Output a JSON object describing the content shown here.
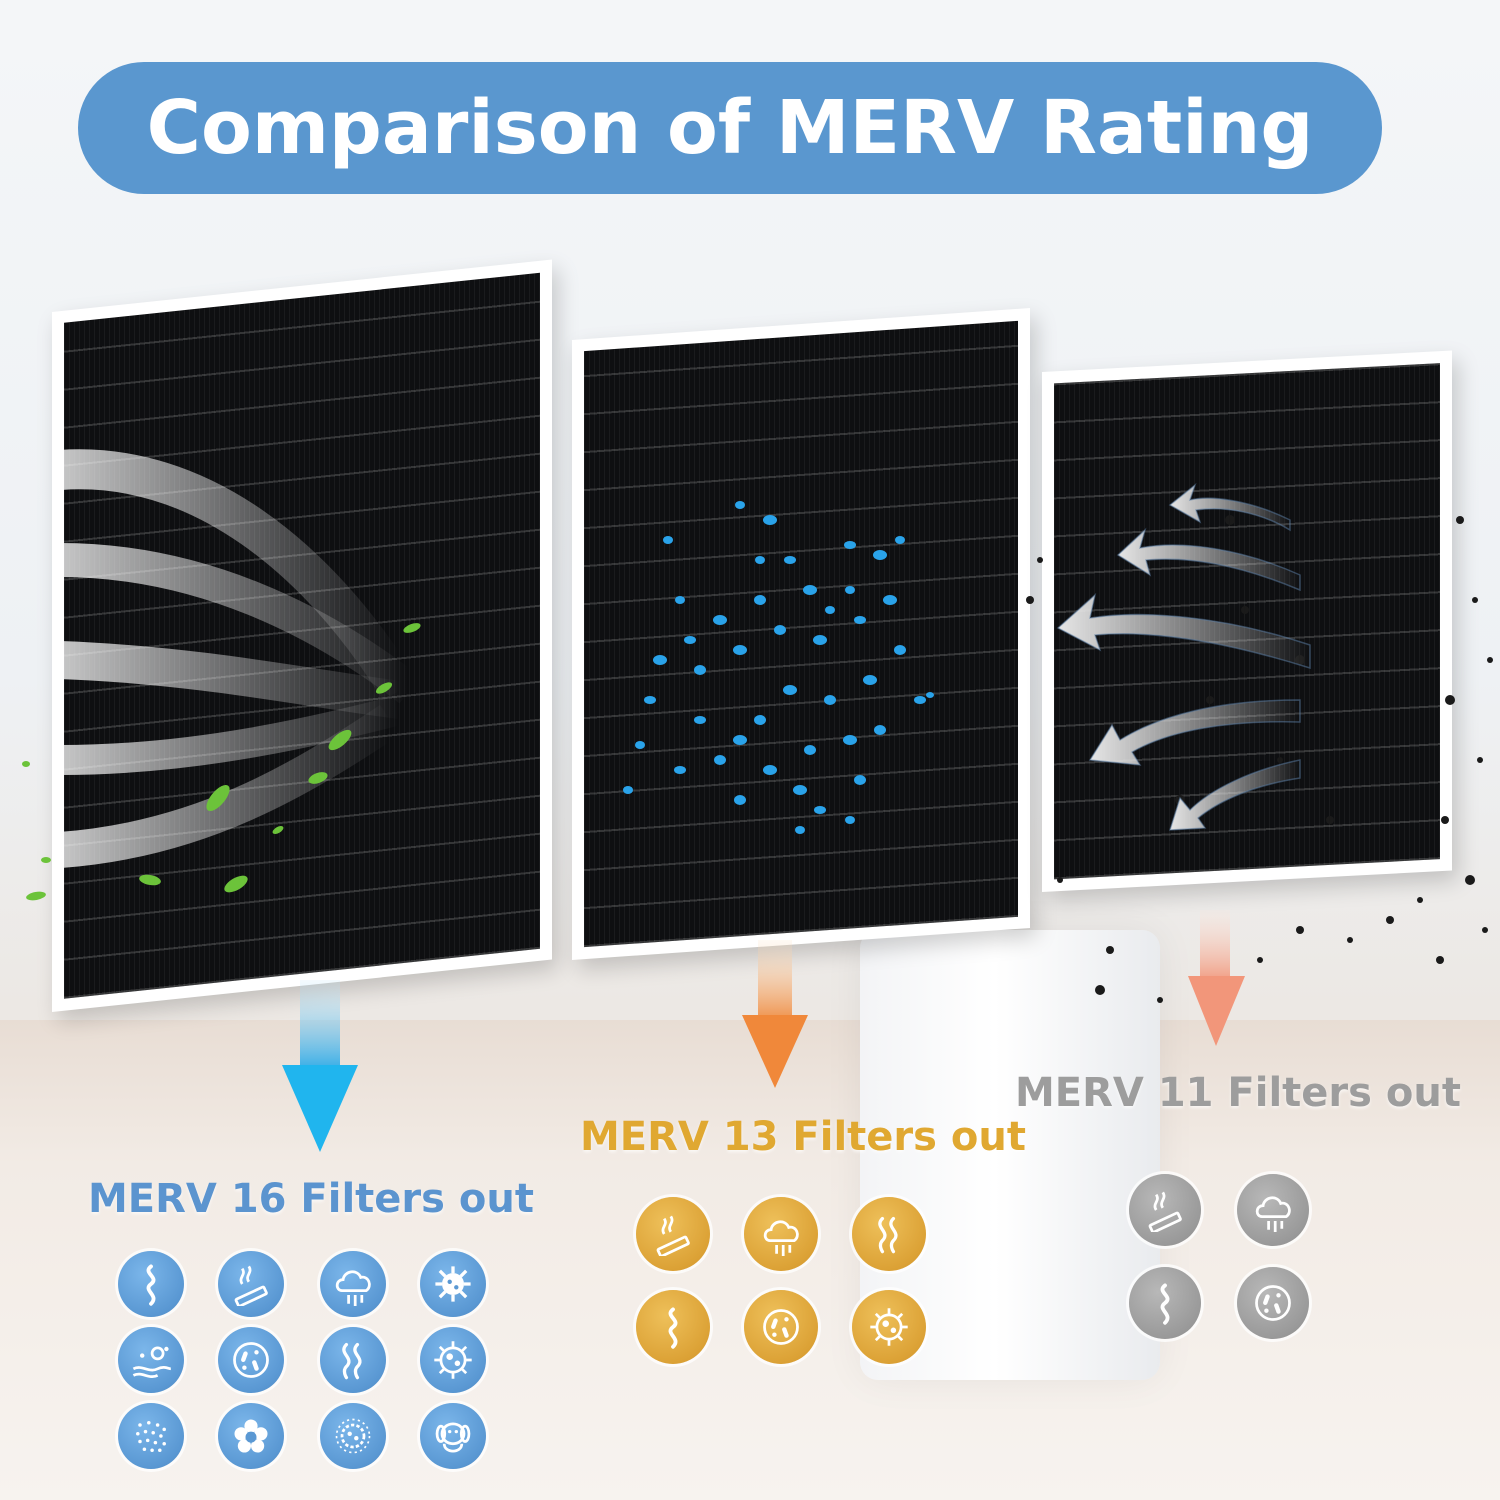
{
  "title": "Comparison of MERV Rating",
  "colors": {
    "title_pill": "#5a97cf",
    "merv16": "#5b94cf",
    "merv13": "#e0a831",
    "merv11": "#9d9d9d"
  },
  "merv16": {
    "heading": "MERV 16 Filters out",
    "icons": [
      "odor-icon",
      "smoke-icon",
      "smog-icon",
      "virus-icon",
      "pollen-icon",
      "bacteria-icon",
      "fumes-icon",
      "germ-icon",
      "dust-icon",
      "flower-icon",
      "microbe-icon",
      "pet-dander-icon"
    ]
  },
  "merv13": {
    "heading": "MERV 13 Filters out",
    "icons": [
      "smoke-icon",
      "smog-icon",
      "fumes-icon",
      "odor-icon",
      "bacteria-icon",
      "virus-icon"
    ]
  },
  "merv11": {
    "heading": "MERV 11 Filters out",
    "icons": [
      "smoke-icon",
      "smog-icon",
      "odor-icon",
      "bacteria-icon"
    ]
  }
}
